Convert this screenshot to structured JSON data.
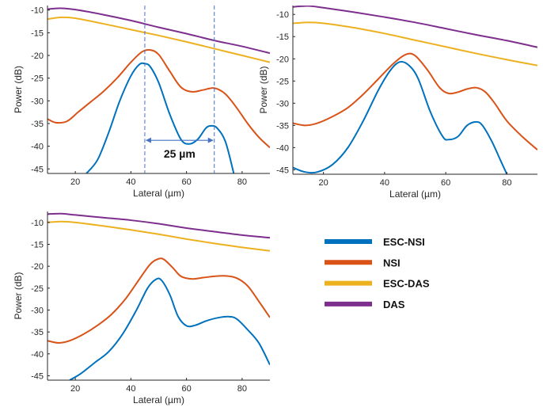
{
  "chart_data": [
    {
      "type": "line",
      "panel": "top-left",
      "xlabel": "Lateral (µm)",
      "ylabel": "Power (dB)",
      "xlim": [
        10,
        90
      ],
      "ylim": [
        -46,
        -9
      ],
      "xticks": [
        20,
        40,
        60,
        80
      ],
      "yticks": [
        -10,
        -15,
        -20,
        -25,
        -30,
        -35,
        -40,
        -45
      ],
      "grid": false,
      "series": [
        {
          "name": "ESC-NSI",
          "color": "#0072BD",
          "x": [
            24,
            28,
            32,
            36,
            40,
            43,
            45,
            47,
            50,
            54,
            58,
            61,
            64,
            67,
            69,
            71,
            74,
            77
          ],
          "y": [
            -46,
            -43,
            -37,
            -30,
            -24.5,
            -22,
            -21.8,
            -22.5,
            -26,
            -33,
            -38.5,
            -39.5,
            -38.5,
            -36,
            -35.5,
            -36,
            -39,
            -46
          ]
        },
        {
          "name": "NSI",
          "color": "#D95319",
          "x": [
            10,
            13,
            17,
            21,
            25,
            30,
            35,
            40,
            44,
            47,
            50,
            54,
            58,
            62,
            66,
            70,
            74,
            78,
            82,
            86,
            90
          ],
          "y": [
            -34,
            -34.8,
            -34.5,
            -32.5,
            -30.5,
            -28,
            -25,
            -21.5,
            -19.2,
            -18.8,
            -19.8,
            -23.5,
            -27,
            -28,
            -27.6,
            -27.2,
            -28.5,
            -31.5,
            -35,
            -38,
            -40.3
          ]
        },
        {
          "name": "ESC-DAS",
          "color": "#EDB120",
          "x": [
            10,
            15,
            20,
            30,
            40,
            50,
            60,
            70,
            80,
            90
          ],
          "y": [
            -12,
            -11.6,
            -11.8,
            -13,
            -14.3,
            -15.6,
            -17,
            -18.5,
            -20,
            -21.5
          ]
        },
        {
          "name": "DAS",
          "color": "#7E2F8E",
          "x": [
            10,
            15,
            20,
            30,
            40,
            50,
            60,
            70,
            80,
            90
          ],
          "y": [
            -9.8,
            -9.6,
            -9.9,
            -11,
            -12.3,
            -13.8,
            -15.2,
            -16.7,
            -18,
            -19.5
          ]
        }
      ],
      "annotation": {
        "label": "25 µm",
        "x_from": 45,
        "x_to": 70,
        "arrow_y": -38.7,
        "label_y": -41.6
      }
    },
    {
      "type": "line",
      "panel": "top-right",
      "xlabel": "Lateral (µm)",
      "ylabel": "Power (dB)",
      "xlim": [
        10,
        90
      ],
      "ylim": [
        -46,
        -8
      ],
      "xticks": [
        20,
        40,
        60,
        80
      ],
      "yticks": [
        -10,
        -15,
        -20,
        -25,
        -30,
        -35,
        -40,
        -45
      ],
      "grid": false,
      "series": [
        {
          "name": "ESC-NSI",
          "color": "#0072BD",
          "x": [
            10,
            14,
            18,
            23,
            28,
            33,
            38,
            42,
            45,
            48,
            51,
            55,
            59,
            61,
            64,
            67,
            70,
            72,
            75,
            78,
            80
          ],
          "y": [
            -44.5,
            -45.5,
            -45.5,
            -43.8,
            -40,
            -34,
            -27,
            -22.5,
            -20.7,
            -21.5,
            -24.5,
            -32,
            -37.5,
            -38.2,
            -37.5,
            -35,
            -34.2,
            -35,
            -38.5,
            -43,
            -46
          ]
        },
        {
          "name": "NSI",
          "color": "#D95319",
          "x": [
            10,
            14,
            18,
            23,
            28,
            33,
            38,
            43,
            47,
            50,
            54,
            58,
            61,
            64,
            67,
            70,
            73,
            76,
            80,
            85,
            90
          ],
          "y": [
            -34.5,
            -35,
            -34.5,
            -33,
            -31,
            -28,
            -24.5,
            -21,
            -19,
            -19.3,
            -22.5,
            -26.5,
            -27.8,
            -27.5,
            -26.8,
            -26.5,
            -27.5,
            -30,
            -34,
            -37.5,
            -40.5
          ]
        },
        {
          "name": "ESC-DAS",
          "color": "#EDB120",
          "x": [
            10,
            15,
            20,
            30,
            40,
            50,
            60,
            70,
            80,
            90
          ],
          "y": [
            -12,
            -11.8,
            -12,
            -13,
            -14.3,
            -15.8,
            -17.3,
            -18.8,
            -20.2,
            -21.5
          ]
        },
        {
          "name": "DAS",
          "color": "#7E2F8E",
          "x": [
            10,
            15,
            20,
            30,
            40,
            50,
            60,
            70,
            80,
            90
          ],
          "y": [
            -8.3,
            -8.1,
            -8.5,
            -9.5,
            -10.6,
            -11.8,
            -13.2,
            -14.6,
            -15.9,
            -17.4
          ]
        }
      ]
    },
    {
      "type": "line",
      "panel": "bottom-left",
      "xlabel": "Lateral (µm)",
      "ylabel": "Power (dB)",
      "xlim": [
        10,
        90
      ],
      "ylim": [
        -46,
        -7.5
      ],
      "xticks": [
        20,
        40,
        60,
        80
      ],
      "yticks": [
        -10,
        -15,
        -20,
        -25,
        -30,
        -35,
        -40,
        -45
      ],
      "grid": false,
      "series": [
        {
          "name": "ESC-NSI",
          "color": "#0072BD",
          "x": [
            18,
            22,
            27,
            32,
            37,
            42,
            46,
            49,
            51,
            54,
            57,
            60,
            63,
            67,
            71,
            75,
            78,
            82,
            86,
            90
          ],
          "y": [
            -46,
            -44.5,
            -42,
            -39.5,
            -35.5,
            -30,
            -25,
            -23,
            -23.2,
            -26.5,
            -31.5,
            -33.6,
            -33.5,
            -32.5,
            -31.8,
            -31.5,
            -32,
            -34.5,
            -37.5,
            -42.5
          ]
        },
        {
          "name": "NSI",
          "color": "#D95319",
          "x": [
            10,
            14,
            18,
            23,
            28,
            33,
            38,
            43,
            47,
            50,
            52,
            55,
            58,
            62,
            66,
            70,
            74,
            78,
            82,
            86,
            90
          ],
          "y": [
            -37,
            -37.5,
            -37,
            -35.5,
            -33.5,
            -31,
            -27.5,
            -23,
            -19.5,
            -18.3,
            -18.5,
            -20.3,
            -22.3,
            -22.9,
            -22.6,
            -22.3,
            -22.2,
            -22.7,
            -24.5,
            -28,
            -31.7
          ]
        },
        {
          "name": "ESC-DAS",
          "color": "#EDB120",
          "x": [
            10,
            15,
            20,
            30,
            40,
            50,
            60,
            70,
            80,
            90
          ],
          "y": [
            -10,
            -9.8,
            -10,
            -10.8,
            -11.7,
            -12.7,
            -13.8,
            -14.8,
            -15.7,
            -16.5
          ]
        },
        {
          "name": "DAS",
          "color": "#7E2F8E",
          "x": [
            10,
            15,
            20,
            30,
            40,
            50,
            60,
            70,
            80,
            90
          ],
          "y": [
            -8.1,
            -8,
            -8.3,
            -8.9,
            -9.5,
            -10.3,
            -11.3,
            -12.1,
            -12.9,
            -13.5
          ]
        }
      ]
    }
  ],
  "legend": [
    {
      "label": "ESC-NSI",
      "color": "#0072BD"
    },
    {
      "label": "NSI",
      "color": "#D95319"
    },
    {
      "label": "ESC-DAS",
      "color": "#EDB120"
    },
    {
      "label": "DAS",
      "color": "#7E2F8E"
    }
  ]
}
